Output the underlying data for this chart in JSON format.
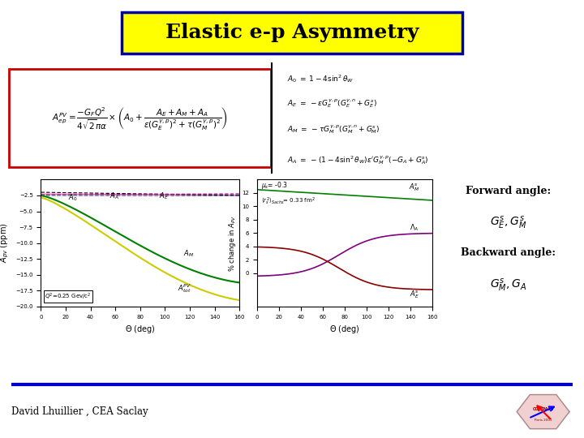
{
  "title": "Elastic e-p Asymmetry",
  "title_bg": "#FFFF00",
  "title_border": "#0000AA",
  "title_fontsize": 18,
  "bg_color": "#FFFFFF",
  "formula_box_color": "#CC0000",
  "forward_text": "Forward angle:",
  "forward_sub": "$G^s_E,G^s_M$",
  "backward_text": "Backward angle:",
  "backward_sub": "$G^s_M,G_A$",
  "footer": "David Lhuillier , CEA Saclay",
  "plot1_xlabel": "$\\Theta$ (deg)",
  "plot1_ylabel": "$A_{pv}$ (ppm)",
  "plot2_xlabel": "$\\Theta$ (deg)",
  "plot2_ylabel": "% change in $A_{PV}$",
  "plot2_ms": "$\\mu_s$= -0.3",
  "plot2_rs": "$\\langle r_s^2\\rangle_{Sachs}$= 0.33 fm$^2$"
}
